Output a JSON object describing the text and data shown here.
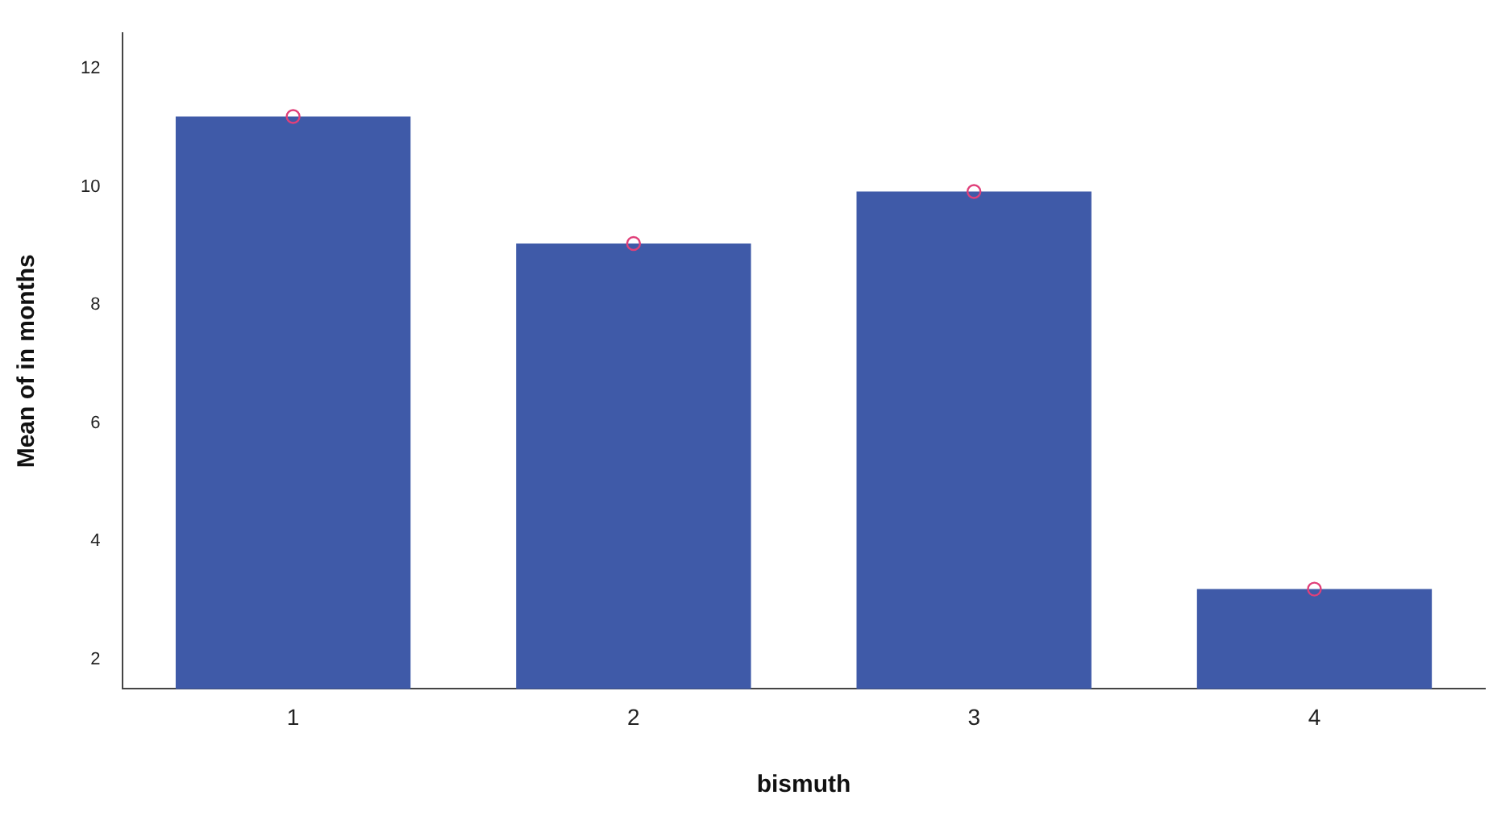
{
  "chart_data": {
    "type": "bar",
    "xlabel": "bismuth",
    "ylabel": "Mean of in months",
    "categories": [
      "1",
      "2",
      "3",
      "4"
    ],
    "series": [
      {
        "color": "#3f5aa8",
        "values": [
          11.19,
          9.04,
          9.92,
          3.19
        ]
      },
      {
        "type": "scatter",
        "color": "#e0407a",
        "x": [
          "1",
          "2",
          "3",
          "4"
        ],
        "values": [
          11.19,
          9.04,
          9.92,
          3.19
        ]
      }
    ],
    "marker": "circle",
    "ylim": [
      1.5,
      12.6
    ],
    "yticks": [
      2,
      4,
      6,
      8,
      10,
      12
    ],
    "grid": false,
    "legend": false
  }
}
